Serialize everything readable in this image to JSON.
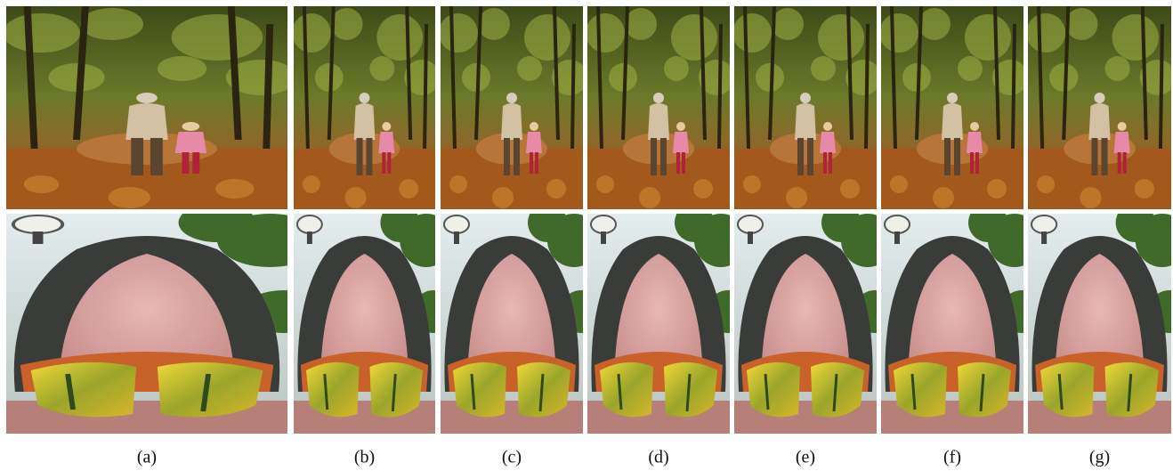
{
  "captions": [
    "(a)",
    "(b)",
    "(c)",
    "(d)",
    "(e)",
    "(f)",
    "(g)"
  ]
}
